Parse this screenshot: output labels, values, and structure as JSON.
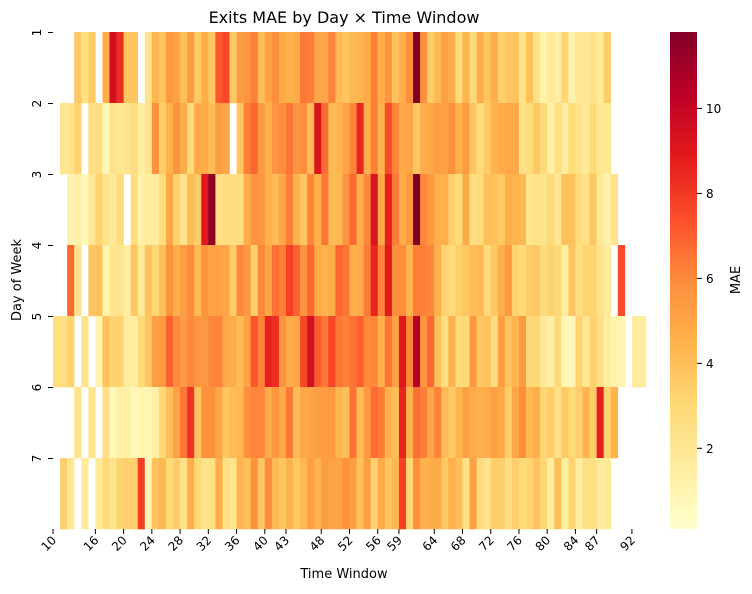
{
  "chart_data": {
    "type": "heatmap",
    "title": "Exits MAE by Day × Time Window",
    "xlabel": "Time Window",
    "ylabel": "Day of Week",
    "colorbar_label": "MAE",
    "colormap": "YlOrRd",
    "color_range": [
      0.1,
      11.8
    ],
    "colorbar_ticks": [
      "2",
      "4",
      "6",
      "8",
      "10"
    ],
    "y_categories": [
      "1",
      "2",
      "3",
      "4",
      "5",
      "6",
      "7"
    ],
    "x_tick_labels": [
      "10",
      "16",
      "20",
      "24",
      "28",
      "32",
      "36",
      "40",
      "43",
      "48",
      "52",
      "56",
      "59",
      "64",
      "68",
      "72",
      "76",
      "80",
      "84",
      "87",
      "92"
    ],
    "row_spans": [
      [
        13,
        88
      ],
      [
        11,
        88
      ],
      [
        12,
        89
      ],
      [
        13,
        90
      ],
      [
        10,
        90
      ],
      [
        13,
        89
      ],
      [
        11,
        88
      ]
    ],
    "row_bases": [
      [
        3.2,
        4.5,
        5.2,
        4.8,
        4.1,
        2.6
      ],
      [
        2.2,
        4.4,
        5.4,
        5.2,
        4.3,
        2.4
      ],
      [
        1.8,
        3.8,
        5.0,
        5.4,
        4.0,
        2.6
      ],
      [
        2.5,
        4.8,
        5.6,
        5.3,
        4.2,
        2.8
      ],
      [
        2.4,
        5.5,
        6.2,
        5.6,
        4.0,
        2.2
      ],
      [
        2.0,
        5.2,
        5.6,
        5.4,
        4.8,
        3.5
      ],
      [
        2.0,
        3.6,
        4.6,
        4.5,
        3.8,
        3.0
      ]
    ],
    "hot_cells": [
      {
        "day": "1",
        "window": 18,
        "value": 9.5
      },
      {
        "day": "1",
        "window": 19,
        "value": 8.3
      },
      {
        "day": "1",
        "window": 33,
        "value": 7.2
      },
      {
        "day": "1",
        "window": 34,
        "value": 7.6
      },
      {
        "day": "1",
        "window": 61,
        "value": 11.8
      },
      {
        "day": "2",
        "window": 47,
        "value": 9.2
      },
      {
        "day": "2",
        "window": 53,
        "value": 8.6
      },
      {
        "day": "2",
        "window": 57,
        "value": 7.5
      },
      {
        "day": "3",
        "window": 31,
        "value": 9.0
      },
      {
        "day": "3",
        "window": 32,
        "value": 11.5
      },
      {
        "day": "3",
        "window": 55,
        "value": 9.3
      },
      {
        "day": "3",
        "window": 57,
        "value": 8.7
      },
      {
        "day": "3",
        "window": 61,
        "value": 11.8
      },
      {
        "day": "4",
        "window": 12,
        "value": 6.8
      },
      {
        "day": "4",
        "window": 43,
        "value": 7.8
      },
      {
        "day": "4",
        "window": 55,
        "value": 8.6
      },
      {
        "day": "4",
        "window": 57,
        "value": 8.9
      },
      {
        "day": "4",
        "window": 90,
        "value": 7.5
      },
      {
        "day": "5",
        "window": 40,
        "value": 8.7
      },
      {
        "day": "5",
        "window": 41,
        "value": 8.3
      },
      {
        "day": "5",
        "window": 46,
        "value": 9.5
      },
      {
        "day": "5",
        "window": 59,
        "value": 9.0
      },
      {
        "day": "5",
        "window": 61,
        "value": 10.5
      },
      {
        "day": "5",
        "window": 92,
        "value": 1.6
      },
      {
        "day": "5",
        "window": 93,
        "value": 1.6
      },
      {
        "day": "6",
        "window": 29,
        "value": 8.2
      },
      {
        "day": "6",
        "window": 59,
        "value": 8.6
      },
      {
        "day": "6",
        "window": 87,
        "value": 8.7
      },
      {
        "day": "7",
        "window": 22,
        "value": 7.9
      },
      {
        "day": "7",
        "window": 59,
        "value": 7.8
      }
    ],
    "missing_cells": [
      {
        "day": "1",
        "window": 16
      },
      {
        "day": "1",
        "window": 22
      },
      {
        "day": "2",
        "window": 14
      },
      {
        "day": "2",
        "window": 35
      },
      {
        "day": "3",
        "window": 20
      },
      {
        "day": "4",
        "window": 14
      },
      {
        "day": "4",
        "window": 89
      },
      {
        "day": "5",
        "window": 13
      },
      {
        "day": "5",
        "window": 15
      },
      {
        "day": "5",
        "window": 91
      },
      {
        "day": "6",
        "window": 14
      },
      {
        "day": "6",
        "window": 16
      },
      {
        "day": "7",
        "window": 13
      },
      {
        "day": "7",
        "window": 15
      }
    ]
  }
}
